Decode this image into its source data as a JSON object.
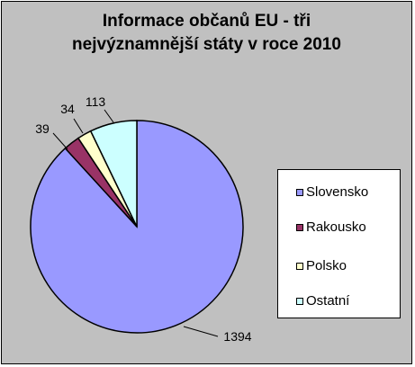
{
  "chart_data": {
    "type": "pie",
    "title_lines": [
      "Informace občanů EU - tři",
      "nejvýznamnější státy v roce 2010"
    ],
    "categories": [
      "Slovensko",
      "Rakousko",
      "Polsko",
      "Ostatní"
    ],
    "values": [
      1394,
      39,
      34,
      113
    ],
    "data_labels": [
      "1394",
      "39",
      "34",
      "113"
    ],
    "colors": [
      "#9999ff",
      "#993366",
      "#ffffcc",
      "#ccffff"
    ],
    "legend_position": "right",
    "background_color": "#c0c0c0"
  }
}
